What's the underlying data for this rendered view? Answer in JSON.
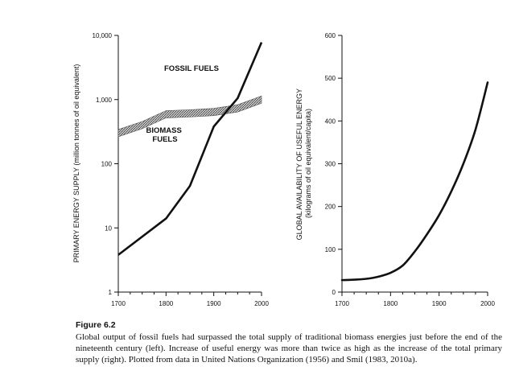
{
  "figure": {
    "label": "Figure 6.2",
    "caption": "Global output of fossil fuels had surpassed the total supply of traditional biomass energies just before the end of the nineteenth century (left). Increase of useful energy was more than twice as high as the increase of the total primary supply (right). Plotted from data in United Nations Organization (1956) and Smil (1983, 2010a)."
  },
  "chart_data": [
    {
      "type": "line",
      "ylabel": "PRIMARY ENERGY SUPPLY (million tonnes of oil equivalent)",
      "xlabel": "",
      "x_ticks": [
        "1700",
        "1800",
        "1900",
        "2000"
      ],
      "y_ticks": [
        "1",
        "10",
        "100",
        "1,000",
        "10,000"
      ],
      "y_scale": "log",
      "xlim": [
        1700,
        2000
      ],
      "ylim": [
        1,
        10000
      ],
      "grid": false,
      "annotations": [
        "FOSSIL FUELS",
        "BIOMASS FUELS"
      ],
      "series": [
        {
          "name": "FOSSIL FUELS",
          "x": [
            1700,
            1800,
            1850,
            1900,
            1950,
            2000
          ],
          "y": [
            3.8,
            14,
            45,
            380,
            1050,
            7800
          ]
        },
        {
          "name": "BIOMASS FUELS",
          "x": [
            1700,
            1750,
            1800,
            1850,
            1900,
            1950,
            2000
          ],
          "y": [
            300,
            400,
            590,
            610,
            640,
            730,
            1000
          ]
        }
      ]
    },
    {
      "type": "line",
      "ylabel": "GLOBAL AVAILABILITY OF USEFUL ENERGY (kilograms of oil equivalent/capita)",
      "xlabel": "",
      "x_ticks": [
        "1700",
        "1800",
        "1900",
        "2000"
      ],
      "y_ticks": [
        "0",
        "100",
        "200",
        "300",
        "400",
        "500",
        "600"
      ],
      "y_scale": "linear",
      "xlim": [
        1700,
        2000
      ],
      "ylim": [
        0,
        600
      ],
      "grid": false,
      "series": [
        {
          "x": [
            1700,
            1725,
            1750,
            1775,
            1800,
            1825,
            1850,
            1875,
            1900,
            1925,
            1950,
            1975,
            2000
          ],
          "y": [
            28,
            29,
            31,
            36,
            45,
            62,
            95,
            135,
            180,
            235,
            300,
            380,
            490
          ]
        }
      ]
    }
  ],
  "colors": {
    "line": "#111111",
    "band_fill": "#9a9a9a"
  }
}
